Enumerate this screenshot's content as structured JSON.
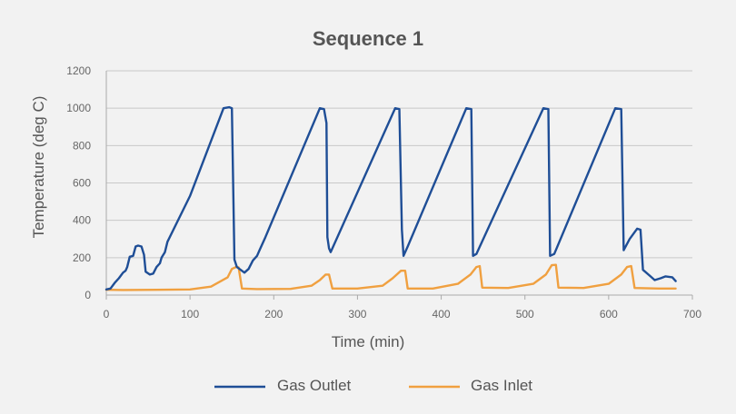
{
  "chart_data": {
    "type": "line",
    "title": "Sequence 1",
    "xlabel": "Time (min)",
    "ylabel": "Temperature (deg C)",
    "xlim": [
      0,
      700
    ],
    "ylim": [
      0,
      1200
    ],
    "xticks": [
      0,
      100,
      200,
      300,
      400,
      500,
      600,
      700
    ],
    "yticks": [
      0,
      200,
      400,
      600,
      800,
      1000,
      1200
    ],
    "grid": "horizontal",
    "legend": "bottom-center",
    "series": [
      {
        "name": "Gas Outlet",
        "color": "#1f4e96",
        "points": [
          [
            0,
            30
          ],
          [
            5,
            35
          ],
          [
            10,
            65
          ],
          [
            15,
            90
          ],
          [
            20,
            120
          ],
          [
            23,
            130
          ],
          [
            25,
            150
          ],
          [
            28,
            205
          ],
          [
            32,
            210
          ],
          [
            35,
            260
          ],
          [
            38,
            265
          ],
          [
            42,
            260
          ],
          [
            45,
            215
          ],
          [
            47,
            125
          ],
          [
            52,
            110
          ],
          [
            56,
            115
          ],
          [
            60,
            150
          ],
          [
            64,
            170
          ],
          [
            66,
            200
          ],
          [
            70,
            230
          ],
          [
            73,
            285
          ],
          [
            100,
            530
          ],
          [
            140,
            1000
          ],
          [
            147,
            1005
          ],
          [
            150,
            1000
          ],
          [
            153,
            190
          ],
          [
            156,
            150
          ],
          [
            165,
            120
          ],
          [
            170,
            140
          ],
          [
            175,
            185
          ],
          [
            180,
            210
          ],
          [
            183,
            240
          ],
          [
            190,
            310
          ],
          [
            255,
            1000
          ],
          [
            260,
            995
          ],
          [
            263,
            920
          ],
          [
            264,
            310
          ],
          [
            266,
            250
          ],
          [
            268,
            230
          ],
          [
            280,
            350
          ],
          [
            345,
            1000
          ],
          [
            350,
            995
          ],
          [
            353,
            350
          ],
          [
            355,
            210
          ],
          [
            360,
            260
          ],
          [
            430,
            1000
          ],
          [
            436,
            995
          ],
          [
            438,
            210
          ],
          [
            442,
            220
          ],
          [
            522,
            1000
          ],
          [
            528,
            995
          ],
          [
            530,
            210
          ],
          [
            535,
            220
          ],
          [
            608,
            1000
          ],
          [
            615,
            995
          ],
          [
            618,
            240
          ],
          [
            625,
            300
          ],
          [
            634,
            355
          ],
          [
            638,
            350
          ],
          [
            641,
            135
          ],
          [
            650,
            100
          ],
          [
            655,
            80
          ],
          [
            662,
            90
          ],
          [
            668,
            100
          ],
          [
            676,
            95
          ],
          [
            680,
            75
          ]
        ]
      },
      {
        "name": "Gas Inlet",
        "color": "#f0a040",
        "points": [
          [
            0,
            28
          ],
          [
            20,
            27
          ],
          [
            60,
            28
          ],
          [
            100,
            30
          ],
          [
            125,
            45
          ],
          [
            135,
            70
          ],
          [
            145,
            95
          ],
          [
            150,
            140
          ],
          [
            155,
            150
          ],
          [
            158,
            148
          ],
          [
            162,
            35
          ],
          [
            180,
            32
          ],
          [
            220,
            33
          ],
          [
            245,
            50
          ],
          [
            255,
            80
          ],
          [
            262,
            110
          ],
          [
            266,
            110
          ],
          [
            270,
            35
          ],
          [
            300,
            35
          ],
          [
            330,
            50
          ],
          [
            342,
            90
          ],
          [
            352,
            130
          ],
          [
            357,
            130
          ],
          [
            360,
            35
          ],
          [
            390,
            35
          ],
          [
            420,
            60
          ],
          [
            435,
            110
          ],
          [
            442,
            150
          ],
          [
            446,
            155
          ],
          [
            449,
            40
          ],
          [
            480,
            38
          ],
          [
            510,
            60
          ],
          [
            525,
            110
          ],
          [
            532,
            160
          ],
          [
            537,
            162
          ],
          [
            540,
            40
          ],
          [
            570,
            38
          ],
          [
            600,
            60
          ],
          [
            615,
            110
          ],
          [
            622,
            150
          ],
          [
            627,
            155
          ],
          [
            631,
            38
          ],
          [
            660,
            35
          ],
          [
            680,
            35
          ]
        ]
      }
    ]
  }
}
